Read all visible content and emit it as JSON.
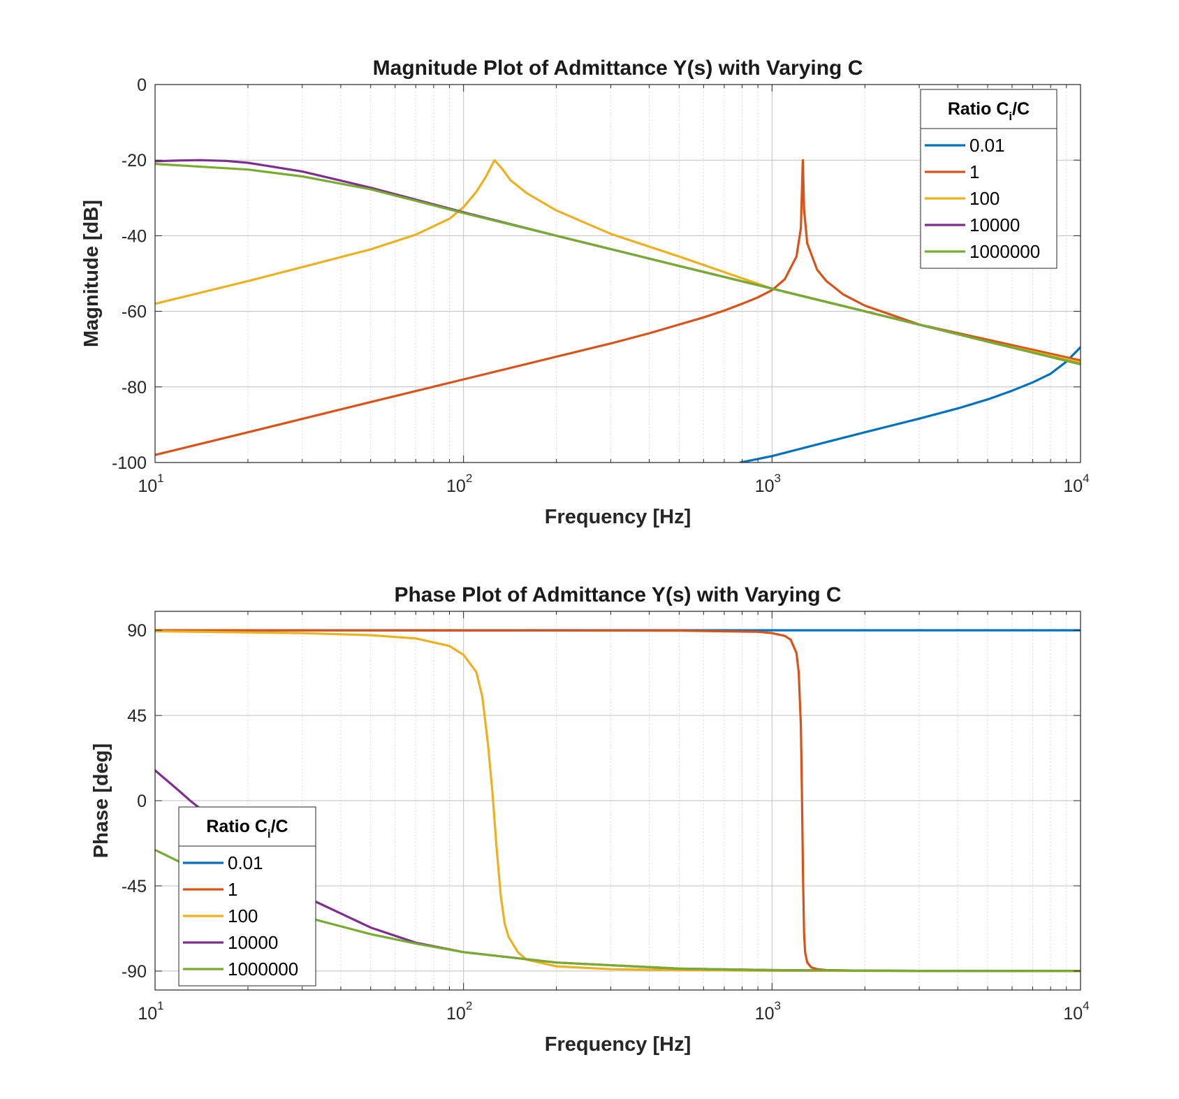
{
  "colors": {
    "s1": "#0072BD",
    "s2": "#D95319",
    "s3": "#EDB120",
    "s4": "#7E2F8E",
    "s5": "#77AC30",
    "grid_major": "#bfbfbf",
    "grid_minor": "#d9d9d9",
    "axes": "#262626"
  },
  "chart_data": [
    {
      "type": "line",
      "title": "Magnitude Plot of Admittance Y(s) with Varying C",
      "xlabel": "Frequency [Hz]",
      "ylabel": "Magnitude [dB]",
      "xscale": "log",
      "xlim": [
        10,
        10000
      ],
      "ylim": [
        -100,
        0
      ],
      "xticks": [
        {
          "value": 10,
          "base": "10",
          "exp": "1"
        },
        {
          "value": 100,
          "base": "10",
          "exp": "2"
        },
        {
          "value": 1000,
          "base": "10",
          "exp": "3"
        },
        {
          "value": 10000,
          "base": "10",
          "exp": "4"
        }
      ],
      "yticks": [
        {
          "value": 0,
          "label": "0"
        },
        {
          "value": -20,
          "label": "-20"
        },
        {
          "value": -40,
          "label": "-40"
        },
        {
          "value": -60,
          "label": "-60"
        },
        {
          "value": -80,
          "label": "-80"
        },
        {
          "value": -100,
          "label": "-100"
        }
      ],
      "grid": "on (major and minor)",
      "legend": {
        "placement": "top-right",
        "title": "Ratio C",
        "title_sub": "i",
        "title_suffix": "/C"
      },
      "series": [
        {
          "name": "0.01",
          "color": "#0072BD",
          "x": [
            790,
            1000,
            1500,
            2000,
            3000,
            4000,
            5000,
            6000,
            7000,
            8000,
            9000,
            10000
          ],
          "y": [
            -100,
            -98.3,
            -94.6,
            -92,
            -88.4,
            -85.7,
            -83.3,
            -81,
            -78.8,
            -76.5,
            -73.3,
            -69.5
          ]
        },
        {
          "name": "1",
          "color": "#D95319",
          "x": [
            10,
            20,
            50,
            100,
            200,
            300,
            400,
            500,
            600,
            700,
            800,
            900,
            1000,
            1100,
            1200,
            1240,
            1258,
            1270,
            1300,
            1400,
            1500,
            1700,
            2000,
            3000,
            5000,
            10000
          ],
          "y": [
            -98,
            -92,
            -84,
            -78,
            -72,
            -68.5,
            -65.8,
            -63.5,
            -61.6,
            -59.8,
            -58,
            -56.3,
            -54.4,
            -51.5,
            -45.5,
            -38,
            -20,
            -33,
            -42,
            -49,
            -52,
            -55.5,
            -58.5,
            -63.5,
            -67.5,
            -73
          ]
        },
        {
          "name": "100",
          "color": "#EDB120",
          "x": [
            10,
            20,
            30,
            50,
            70,
            90,
            100,
            110,
            118,
            126,
            134,
            142,
            160,
            200,
            300,
            500,
            1000,
            2000,
            5000,
            10000
          ],
          "y": [
            -58,
            -52,
            -48.3,
            -43.6,
            -39.7,
            -35.5,
            -32.4,
            -28.4,
            -24.5,
            -20,
            -22.5,
            -25.3,
            -28.7,
            -33.3,
            -39.5,
            -45.5,
            -54,
            -60,
            -68,
            -73.5
          ]
        },
        {
          "name": "10000",
          "color": "#7E2F8E",
          "x": [
            10,
            12,
            14,
            17,
            20,
            30,
            50,
            100,
            200,
            500,
            1000,
            2000,
            5000,
            10000
          ],
          "y": [
            -20.3,
            -20.1,
            -20,
            -20.2,
            -20.7,
            -23,
            -27.3,
            -33.8,
            -40,
            -48,
            -54,
            -60,
            -68,
            -74
          ]
        },
        {
          "name": "1000000",
          "color": "#77AC30",
          "x": [
            10,
            20,
            30,
            50,
            100,
            200,
            500,
            1000,
            2000,
            5000,
            10000
          ],
          "y": [
            -21,
            -22.5,
            -24.3,
            -27.7,
            -34,
            -40,
            -48,
            -54,
            -60,
            -68,
            -74
          ]
        }
      ]
    },
    {
      "type": "line",
      "title": "Phase Plot of  Admittance Y(s) with Varying C",
      "xlabel": "Frequency [Hz]",
      "ylabel": "Phase [deg]",
      "xscale": "log",
      "xlim": [
        10,
        10000
      ],
      "ylim": [
        -100,
        100
      ],
      "xticks": [
        {
          "value": 10,
          "base": "10",
          "exp": "1"
        },
        {
          "value": 100,
          "base": "10",
          "exp": "2"
        },
        {
          "value": 1000,
          "base": "10",
          "exp": "3"
        },
        {
          "value": 10000,
          "base": "10",
          "exp": "4"
        }
      ],
      "yticks": [
        {
          "value": 90,
          "label": "90"
        },
        {
          "value": 45,
          "label": "45"
        },
        {
          "value": 0,
          "label": "0"
        },
        {
          "value": -45,
          "label": "-45"
        },
        {
          "value": -90,
          "label": "-90"
        }
      ],
      "grid": "on (major and minor)",
      "legend": {
        "placement": "bottom-left",
        "title": "Ratio C",
        "title_sub": "i",
        "title_suffix": "/C"
      },
      "series": [
        {
          "name": "0.01",
          "color": "#0072BD",
          "x": [
            10,
            10000
          ],
          "y": [
            90,
            90
          ]
        },
        {
          "name": "1",
          "color": "#D95319",
          "x": [
            10,
            500,
            900,
            1000,
            1100,
            1150,
            1200,
            1220,
            1240,
            1250,
            1260,
            1270,
            1280,
            1300,
            1340,
            1400,
            1500,
            2000,
            5000,
            10000
          ],
          "y": [
            90,
            89.8,
            89.2,
            88.5,
            87,
            85,
            78,
            68,
            40,
            5,
            -40,
            -70,
            -80,
            -85.5,
            -88,
            -89,
            -89.5,
            -89.8,
            -90,
            -90
          ]
        },
        {
          "name": "100",
          "color": "#EDB120",
          "x": [
            10,
            30,
            50,
            70,
            90,
            100,
            110,
            115,
            120,
            124,
            128,
            132,
            136,
            140,
            150,
            160,
            200,
            300,
            500,
            1000,
            10000
          ],
          "y": [
            89.5,
            88.5,
            87.4,
            85.7,
            81.7,
            77,
            68,
            55,
            30,
            5,
            -25,
            -50,
            -65,
            -72,
            -80,
            -84,
            -87.5,
            -89,
            -89.5,
            -89.8,
            -90
          ]
        },
        {
          "name": "10000",
          "color": "#7E2F8E",
          "x": [
            10,
            12,
            13,
            15,
            20,
            30,
            50,
            70,
            100,
            200,
            500,
            1000,
            3000,
            10000
          ],
          "y": [
            16,
            5,
            0,
            -8,
            -26,
            -50,
            -67,
            -75,
            -80,
            -85.5,
            -88.7,
            -89.5,
            -89.9,
            -90
          ]
        },
        {
          "name": "1000000",
          "color": "#77AC30",
          "x": [
            10,
            15,
            20,
            30,
            50,
            70,
            100,
            200,
            500,
            1000,
            3000,
            10000
          ],
          "y": [
            -26,
            -40,
            -50,
            -61,
            -70.5,
            -75.5,
            -80,
            -85.5,
            -88.7,
            -89.5,
            -89.9,
            -90
          ]
        }
      ]
    }
  ]
}
